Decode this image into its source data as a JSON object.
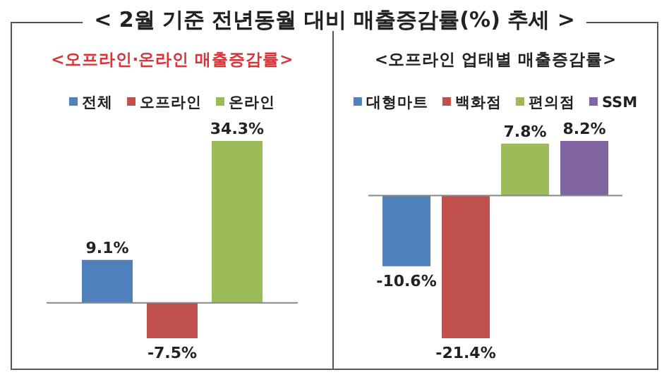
{
  "chart_data": [
    {
      "type": "bar",
      "title": "< 2월 기준 전년동월 대비 매출증감률(%) 추세 >",
      "subtitle": "<오프라인·온라인 매출증감률>",
      "categories": [
        null
      ],
      "legend": "top",
      "data_labels": true,
      "series": [
        {
          "name": "전체",
          "color": "#4f81bd",
          "values": [
            9.1
          ],
          "value_labels": [
            "9.1%"
          ]
        },
        {
          "name": "오프라인",
          "color": "#c0504d",
          "values": [
            -7.5
          ],
          "value_labels": [
            "-7.5%"
          ]
        },
        {
          "name": "온라인",
          "color": "#9bbb59",
          "values": [
            34.3
          ],
          "value_labels": [
            "34.3%"
          ]
        }
      ]
    },
    {
      "type": "bar",
      "title": "<오프라인 업태별 매출증감률>",
      "categories": [
        null
      ],
      "legend": "top",
      "data_labels": true,
      "series": [
        {
          "name": "대형마트",
          "color": "#4f81bd",
          "values": [
            -10.6
          ],
          "value_labels": [
            "-10.6%"
          ]
        },
        {
          "name": "백화점",
          "color": "#c0504d",
          "values": [
            -21.4
          ],
          "value_labels": [
            "-21.4%"
          ]
        },
        {
          "name": "편의점",
          "color": "#9bbb59",
          "values": [
            7.8
          ],
          "value_labels": [
            "7.8%"
          ]
        },
        {
          "name": "SSM",
          "color": "#8064a2",
          "values": [
            8.2
          ],
          "value_labels": [
            "8.2%"
          ]
        }
      ]
    }
  ]
}
